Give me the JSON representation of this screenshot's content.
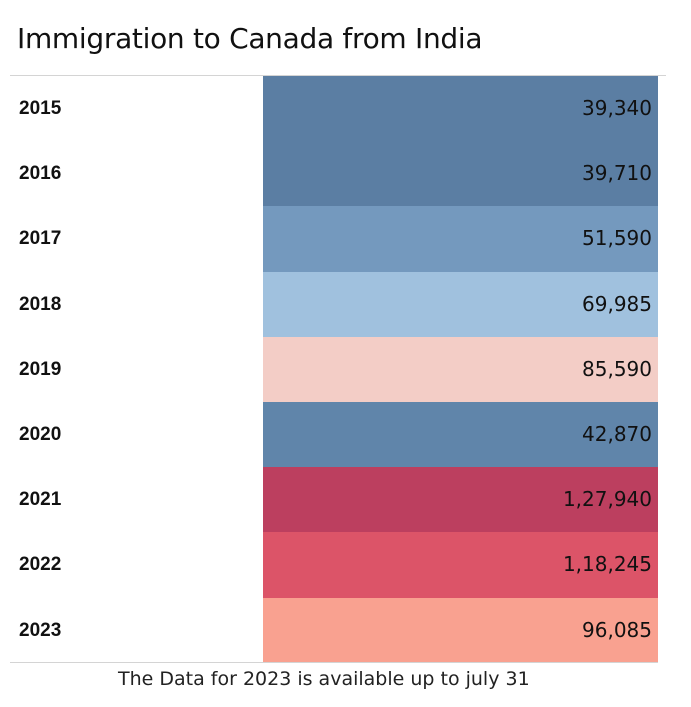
{
  "title": "Immigration to Canada from India",
  "footer": "The Data for 2023 is available up to july 31",
  "chart_data": {
    "type": "table",
    "title": "Immigration to Canada from India",
    "categories": [
      "2015",
      "2016",
      "2017",
      "2018",
      "2019",
      "2020",
      "2021",
      "2022",
      "2023"
    ],
    "labels": [
      "39,340",
      "39,710",
      "51,590",
      "69,985",
      "85,590",
      "42,870",
      "1,27,940",
      "1,18,245",
      "96,085"
    ],
    "values": [
      39340,
      39710,
      51590,
      69985,
      85590,
      42870,
      127940,
      118245,
      96085
    ],
    "colors": [
      "#5b7ea3",
      "#5b7ea3",
      "#7499be",
      "#a0c1de",
      "#f3cdc6",
      "#6085aa",
      "#bc3f5f",
      "#dc5468",
      "#f9a190"
    ]
  }
}
